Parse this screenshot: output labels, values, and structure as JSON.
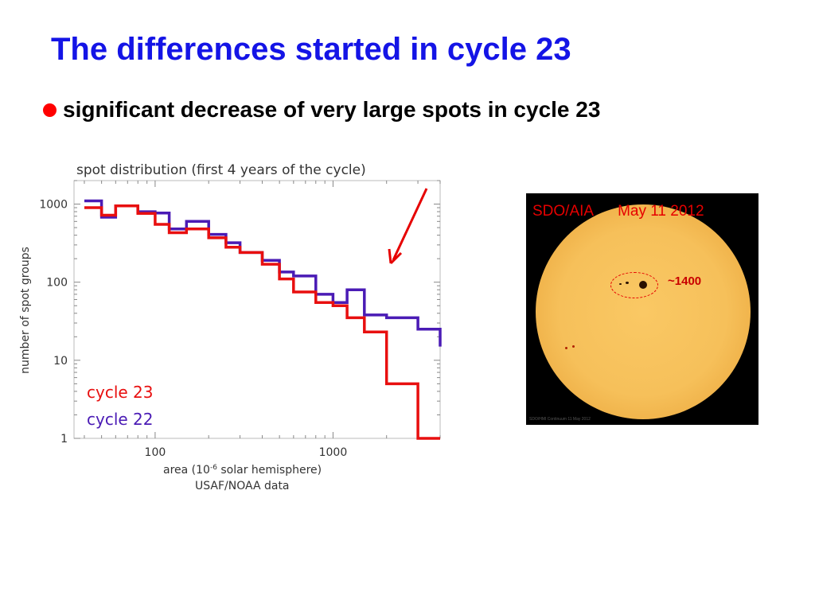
{
  "slide": {
    "title": "The differences started in cycle 23",
    "bullet": "significant decrease of very large spots in cycle 23"
  },
  "colors": {
    "title": "#1414e6",
    "bullet": "#ff0000",
    "cycle23": "#e80f0f",
    "cycle22": "#4a1bb5",
    "caption": "#e60000"
  },
  "sun_image": {
    "caption_instrument": "SDO/AIA",
    "caption_date": "May 11 2012",
    "spot_area_label": "~1400",
    "credit": "SDO/HMI Continuum  11 May 2012"
  },
  "chart_data": {
    "type": "line",
    "step": true,
    "title": "spot distribution (first 4 years of the cycle)",
    "xlabel_pre": "area (10",
    "xlabel_sup": "-6",
    "xlabel_post": " solar hemisphere)",
    "source": "USAF/NOAA data",
    "ylabel": "number of spot groups",
    "xscale": "log",
    "yscale": "log",
    "xlim": [
      35,
      4000
    ],
    "ylim": [
      1,
      2000
    ],
    "xticks": [
      {
        "value": 100,
        "label": "100"
      },
      {
        "value": 1000,
        "label": "1000"
      }
    ],
    "yticks": [
      {
        "value": 1,
        "label": "1"
      },
      {
        "value": 10,
        "label": "10"
      },
      {
        "value": 100,
        "label": "100"
      },
      {
        "value": 1000,
        "label": "1000"
      }
    ],
    "legend_position": "bottom-left",
    "series": [
      {
        "name": "cycle 23",
        "color": "#e80f0f",
        "x": [
          40,
          50,
          60,
          80,
          100,
          120,
          150,
          200,
          250,
          300,
          400,
          500,
          600,
          800,
          1000,
          1200,
          1500,
          2000,
          3000,
          4000
        ],
        "y": [
          900,
          720,
          950,
          760,
          550,
          430,
          480,
          370,
          280,
          240,
          170,
          110,
          75,
          55,
          50,
          35,
          23,
          5,
          1,
          1
        ]
      },
      {
        "name": "cycle 22",
        "color": "#4a1bb5",
        "x": [
          40,
          50,
          60,
          80,
          100,
          120,
          150,
          200,
          250,
          300,
          400,
          500,
          600,
          800,
          1000,
          1200,
          1500,
          2000,
          3000,
          4000
        ],
        "y": [
          1100,
          680,
          950,
          800,
          770,
          480,
          600,
          410,
          320,
          240,
          190,
          135,
          120,
          70,
          55,
          80,
          38,
          35,
          25,
          15
        ]
      }
    ]
  }
}
